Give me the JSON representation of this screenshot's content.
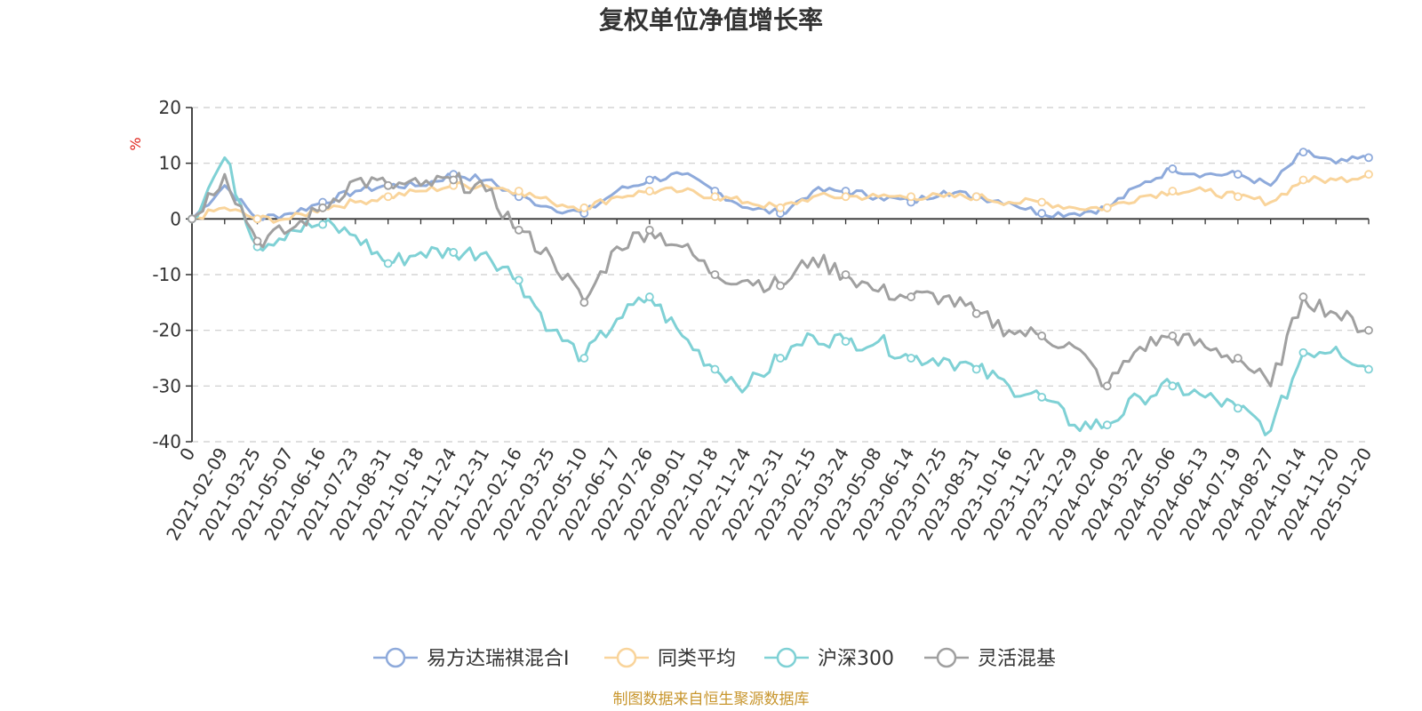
{
  "chart_data": {
    "type": "line",
    "title": "复权单位净值增长率",
    "unit": "%",
    "ylim": [
      -40,
      20
    ],
    "yticks": [
      "20",
      "10",
      "0",
      "-10",
      "-20",
      "-30",
      "-40"
    ],
    "x_labels": [
      "0",
      "2021-02-09",
      "2021-03-25",
      "2021-05-07",
      "2021-06-16",
      "2021-07-23",
      "2021-08-31",
      "2021-10-18",
      "2021-11-24",
      "2021-12-31",
      "2022-02-16",
      "2022-03-25",
      "2022-05-10",
      "2022-06-17",
      "2022-07-26",
      "2022-09-01",
      "2022-10-18",
      "2022-11-24",
      "2022-12-31",
      "2023-02-15",
      "2023-03-24",
      "2023-05-08",
      "2023-06-14",
      "2023-07-25",
      "2023-08-31",
      "2023-10-16",
      "2023-11-22",
      "2023-12-29",
      "2024-02-06",
      "2024-03-22",
      "2024-05-06",
      "2024-06-13",
      "2024-07-19",
      "2024-08-27",
      "2024-10-14",
      "2024-11-20",
      "2025-01-20"
    ],
    "series": [
      {
        "name": "易方达瑞祺混合I",
        "color": "#8eaadb",
        "values": [
          0,
          6,
          0,
          1,
          3,
          5,
          6,
          6,
          8,
          7,
          4,
          2,
          1,
          5,
          7,
          8,
          5,
          2,
          1,
          5,
          5,
          4,
          3,
          5,
          4,
          3,
          1,
          1,
          2,
          6,
          9,
          8,
          8,
          6,
          12,
          10,
          11
        ]
      },
      {
        "name": "同类平均",
        "color": "#f9d49b",
        "values": [
          0,
          2,
          0,
          0,
          2,
          3,
          4,
          5,
          6,
          6,
          5,
          3,
          2,
          4,
          5,
          5,
          4,
          3,
          2,
          4,
          4,
          4,
          4,
          4,
          4,
          3,
          3,
          2,
          2,
          4,
          5,
          5,
          4,
          3,
          7,
          7,
          8
        ]
      },
      {
        "name": "沪深300",
        "color": "#7fd1d5",
        "values": [
          0,
          11,
          -5,
          -2,
          -1,
          -3,
          -8,
          -6,
          -6,
          -6,
          -11,
          -20,
          -25,
          -18,
          -14,
          -21,
          -27,
          -30,
          -25,
          -21,
          -22,
          -22,
          -25,
          -25,
          -27,
          -30,
          -32,
          -37,
          -37,
          -32,
          -30,
          -32,
          -34,
          -38,
          -24,
          -23,
          -27
        ]
      },
      {
        "name": "灵活混基",
        "color": "#a0a0a0",
        "values": [
          0,
          8,
          -4,
          -2,
          2,
          7,
          6,
          6,
          7,
          5,
          -2,
          -7,
          -15,
          -5,
          -2,
          -5,
          -10,
          -11,
          -12,
          -7,
          -10,
          -13,
          -14,
          -14,
          -17,
          -20,
          -21,
          -23,
          -30,
          -23,
          -21,
          -23,
          -25,
          -30,
          -14,
          -17,
          -20
        ]
      }
    ],
    "legend_position": "bottom",
    "grid": true
  },
  "source_text": "制图数据来自恒生聚源数据库"
}
